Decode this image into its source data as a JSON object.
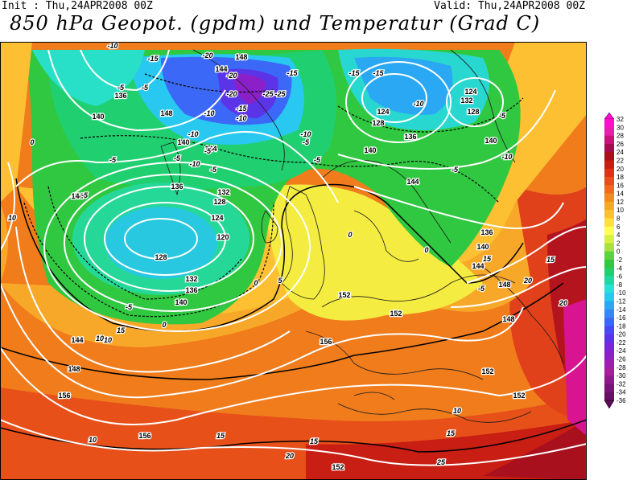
{
  "header": {
    "init": "Init : Thu,24APR2008 00Z",
    "valid": "Valid: Thu,24APR2008 00Z",
    "title": "850 hPa Geopot. (gpdm) und Temperatur (Grad C)"
  },
  "colorbar": {
    "labels": [
      "32",
      "30",
      "28",
      "26",
      "24",
      "22",
      "20",
      "18",
      "16",
      "14",
      "12",
      "10",
      "8",
      "6",
      "4",
      "2",
      "0",
      "-2",
      "-4",
      "-6",
      "-8",
      "-10",
      "-12",
      "-14",
      "-16",
      "-18",
      "-20",
      "-22",
      "-24",
      "-26",
      "-28",
      "-30",
      "-32",
      "-34",
      "-36"
    ],
    "colors": [
      "#ff10d0",
      "#e81eb0",
      "#c8147a",
      "#a80c50",
      "#a8101e",
      "#c81e14",
      "#e03212",
      "#e8501a",
      "#f06a1a",
      "#f48a1e",
      "#f8a828",
      "#fcc032",
      "#ffe040",
      "#ffff55",
      "#d8f046",
      "#a8e040",
      "#5cd23c",
      "#30c840",
      "#20d070",
      "#20d8a0",
      "#28e0d4",
      "#28c8f0",
      "#2aa8f4",
      "#3288f8",
      "#3c68f8",
      "#4848f4",
      "#5c34e8",
      "#7428d8",
      "#8c20c8",
      "#a01cb4",
      "#a81ca0",
      "#901888",
      "#7c1474",
      "#6a1062"
    ]
  },
  "map_labels": {
    "height": [
      "148",
      "144",
      "136",
      "140",
      "148",
      "140",
      "144",
      "136",
      "132",
      "128",
      "124",
      "120",
      "128",
      "132",
      "136",
      "140",
      "144",
      "144",
      "148",
      "152",
      "124",
      "128",
      "132",
      "124",
      "128",
      "140",
      "136",
      "140",
      "144",
      "136",
      "140",
      "144",
      "148",
      "148",
      "152",
      "156",
      "152",
      "156",
      "156",
      "152",
      "152"
    ],
    "temp": [
      "-10",
      "-15",
      "-20",
      "-5",
      "-20",
      "-25",
      "-15",
      "-15",
      "-15",
      "-10",
      "-5",
      "-25",
      "-20",
      "-15",
      "-10",
      "-10",
      "-10",
      "-5",
      "-5",
      "-5",
      "-5",
      "-5",
      "0",
      "0",
      "-5",
      "-5",
      "-10",
      "-5",
      "-10",
      "-5",
      "0",
      "5",
      "10",
      "10",
      "10",
      "15",
      "20",
      "20",
      "15",
      "10",
      "15",
      "0",
      "0",
      "10",
      "15",
      "15",
      "20",
      "25",
      "15",
      "-5",
      "-5",
      "-10"
    ]
  }
}
